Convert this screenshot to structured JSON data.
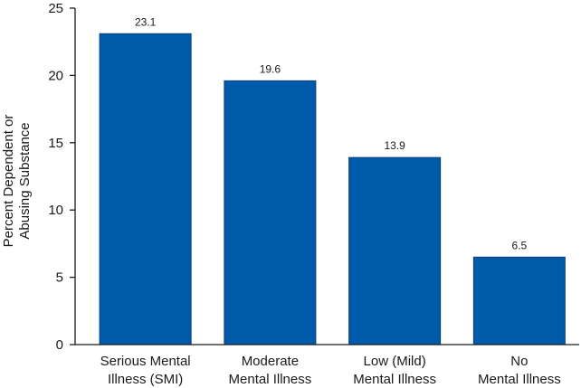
{
  "chart_data": {
    "type": "bar",
    "categories": [
      [
        "Serious Mental",
        "Illness (SMI)"
      ],
      [
        "Moderate",
        "Mental Illness"
      ],
      [
        "Low (Mild)",
        "Mental Illness"
      ],
      [
        "No",
        "Mental Illness"
      ]
    ],
    "values": [
      23.1,
      19.6,
      13.9,
      6.5
    ],
    "data_labels": [
      "23.1",
      "19.6",
      "13.9",
      "6.5"
    ],
    "ylabel": [
      "Percent Dependent or",
      "Abusing Substance"
    ],
    "xlabel": "",
    "title": "",
    "ylim": [
      0,
      25
    ],
    "yticks": [
      0,
      5,
      10,
      15,
      20,
      25
    ],
    "grid": false,
    "legend": "none",
    "bar_color": "#005aaa"
  }
}
